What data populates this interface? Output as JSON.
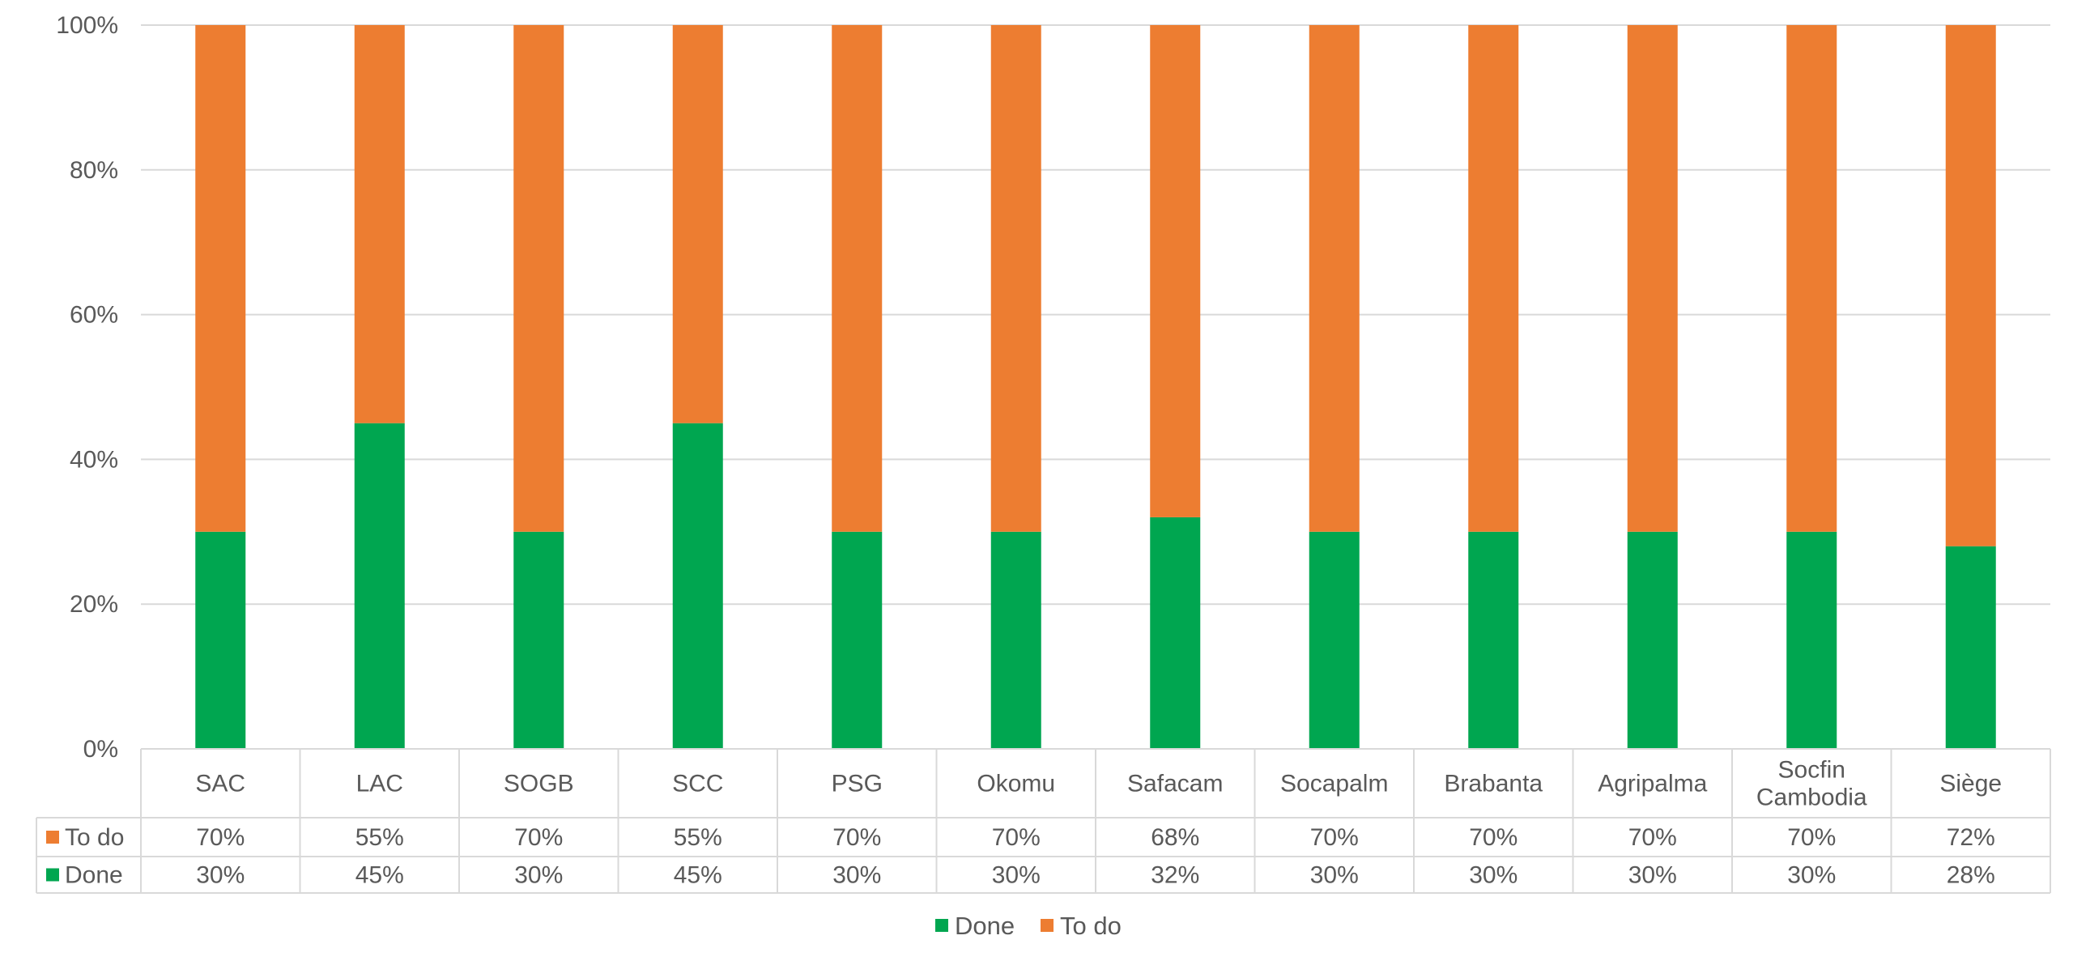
{
  "chart_data": {
    "type": "bar",
    "stacked": "percent",
    "categories": [
      "SAC",
      "LAC",
      "SOGB",
      "SCC",
      "PSG",
      "Okomu",
      "Safacam",
      "Socapalm",
      "Brabanta",
      "Agripalma",
      "Socfin Cambodia",
      "Siège"
    ],
    "category_lines": [
      [
        "SAC"
      ],
      [
        "LAC"
      ],
      [
        "SOGB"
      ],
      [
        "SCC"
      ],
      [
        "PSG"
      ],
      [
        "Okomu"
      ],
      [
        "Safacam"
      ],
      [
        "Socapalm"
      ],
      [
        "Brabanta"
      ],
      [
        "Agripalma"
      ],
      [
        "Socfin",
        "Cambodia"
      ],
      [
        "Siège"
      ]
    ],
    "series": [
      {
        "name": "Done",
        "color": "#00a650",
        "values": [
          30,
          45,
          30,
          45,
          30,
          30,
          32,
          30,
          30,
          30,
          30,
          28
        ],
        "labels": [
          "30%",
          "45%",
          "30%",
          "45%",
          "30%",
          "30%",
          "32%",
          "30%",
          "30%",
          "30%",
          "30%",
          "28%"
        ]
      },
      {
        "name": "To do",
        "color": "#ed7d31",
        "values": [
          70,
          55,
          70,
          55,
          70,
          70,
          68,
          70,
          70,
          70,
          70,
          72
        ],
        "labels": [
          "70%",
          "55%",
          "70%",
          "55%",
          "70%",
          "70%",
          "68%",
          "70%",
          "70%",
          "70%",
          "70%",
          "72%"
        ]
      }
    ],
    "yticks": [
      "0%",
      "20%",
      "40%",
      "60%",
      "80%",
      "100%"
    ],
    "ylim": [
      0,
      100
    ],
    "grid": true,
    "data_table": true,
    "legend_position": "bottom",
    "title": "",
    "xlabel": "",
    "ylabel": ""
  }
}
